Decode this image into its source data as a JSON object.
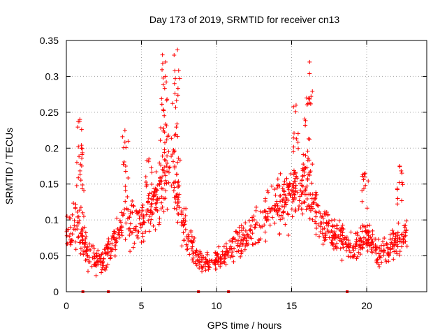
{
  "chart_data": {
    "type": "scatter",
    "title": "Day 173 of 2019, SRMTID for receiver cn13",
    "xlabel": "GPS time / hours",
    "ylabel": "SRMTID / TECUs",
    "xlim": [
      0,
      24
    ],
    "ylim": [
      0,
      0.35
    ],
    "x_ticks": [
      0,
      5,
      10,
      15,
      20
    ],
    "x_tick_labels": [
      "0",
      "5",
      "10",
      "15",
      "20"
    ],
    "y_ticks": [
      0,
      0.05,
      0.1,
      0.15,
      0.2,
      0.25,
      0.3,
      0.35
    ],
    "y_tick_labels": [
      "0",
      "0.05",
      "0.1",
      "0.15",
      "0.2",
      "0.25",
      "0.3",
      "0.35"
    ],
    "grid": true,
    "marker": "plus",
    "marker_color": "#ff0000",
    "series_name": "SRMTID",
    "envelope": {
      "hours": [
        0,
        0.5,
        1.0,
        1.5,
        2.0,
        2.5,
        3.0,
        3.5,
        4.0,
        4.5,
        5.0,
        5.5,
        6.0,
        6.5,
        7.0,
        7.5,
        8.0,
        8.5,
        9.0,
        9.5,
        10.0,
        10.5,
        11.0,
        11.5,
        12.0,
        12.5,
        13.0,
        13.5,
        14.0,
        14.5,
        15.0,
        15.5,
        16.0,
        16.5,
        17.0,
        17.5,
        18.0,
        18.5,
        19.0,
        19.5,
        20.0,
        20.5,
        21.0,
        21.5,
        22.0,
        22.5,
        22.7
      ],
      "typical": [
        0.07,
        0.09,
        0.075,
        0.05,
        0.045,
        0.045,
        0.065,
        0.08,
        0.1,
        0.095,
        0.1,
        0.115,
        0.13,
        0.155,
        0.16,
        0.12,
        0.08,
        0.06,
        0.04,
        0.04,
        0.045,
        0.05,
        0.065,
        0.07,
        0.075,
        0.09,
        0.1,
        0.115,
        0.12,
        0.125,
        0.135,
        0.14,
        0.14,
        0.11,
        0.095,
        0.085,
        0.08,
        0.07,
        0.06,
        0.065,
        0.08,
        0.06,
        0.055,
        0.06,
        0.07,
        0.075,
        0.08
      ],
      "spread": [
        0.03,
        0.035,
        0.03,
        0.025,
        0.02,
        0.02,
        0.025,
        0.03,
        0.035,
        0.035,
        0.035,
        0.04,
        0.045,
        0.05,
        0.05,
        0.04,
        0.03,
        0.025,
        0.015,
        0.015,
        0.02,
        0.02,
        0.025,
        0.025,
        0.025,
        0.03,
        0.035,
        0.04,
        0.04,
        0.04,
        0.045,
        0.045,
        0.045,
        0.04,
        0.035,
        0.03,
        0.03,
        0.025,
        0.025,
        0.025,
        0.03,
        0.02,
        0.02,
        0.025,
        0.025,
        0.025,
        0.025
      ]
    },
    "spikes": [
      {
        "x": 0.9,
        "peak": 0.24
      },
      {
        "x": 1.0,
        "peak": 0.2
      },
      {
        "x": 3.9,
        "peak": 0.225
      },
      {
        "x": 5.5,
        "peak": 0.185
      },
      {
        "x": 6.4,
        "peak": 0.33
      },
      {
        "x": 6.6,
        "peak": 0.3
      },
      {
        "x": 7.4,
        "peak": 0.337
      },
      {
        "x": 7.2,
        "peak": 0.29
      },
      {
        "x": 15.3,
        "peak": 0.26
      },
      {
        "x": 16.2,
        "peak": 0.32
      },
      {
        "x": 16.0,
        "peak": 0.27
      },
      {
        "x": 19.9,
        "peak": 0.165
      },
      {
        "x": 22.2,
        "peak": 0.175
      }
    ],
    "n_points": 1150,
    "low_rug_markers_at_zero": [
      1.1,
      2.8,
      8.8,
      10.8,
      18.7
    ]
  }
}
